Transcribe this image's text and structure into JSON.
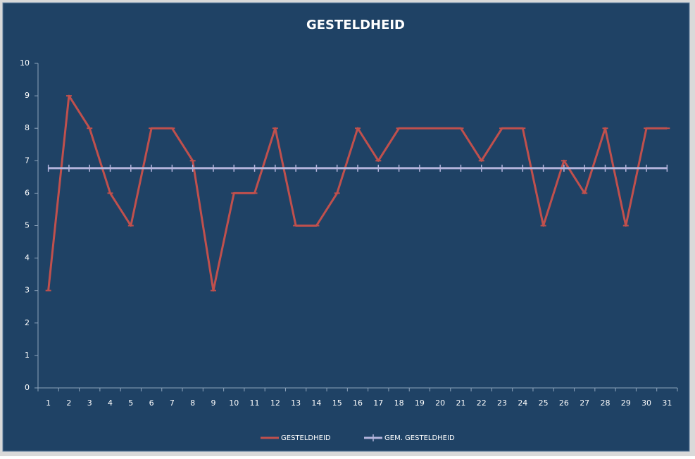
{
  "chart_data": {
    "type": "line",
    "title": "GESTELDHEID",
    "categories": [
      "1",
      "2",
      "3",
      "4",
      "5",
      "6",
      "7",
      "8",
      "9",
      "10",
      "11",
      "12",
      "13",
      "14",
      "15",
      "16",
      "17",
      "18",
      "19",
      "20",
      "21",
      "22",
      "23",
      "24",
      "25",
      "26",
      "27",
      "28",
      "29",
      "30",
      "31"
    ],
    "series": [
      {
        "name": "GESTELDHEID",
        "color": "#c0504d",
        "marker": "dash",
        "values": [
          3,
          9,
          8,
          6,
          5,
          8,
          8,
          7,
          3,
          6,
          6,
          8,
          5,
          5,
          6,
          8,
          7,
          8,
          8,
          8,
          8,
          7,
          8,
          8,
          5,
          7,
          6,
          8,
          5,
          8,
          8
        ]
      },
      {
        "name": "GEM. GESTELDHEID",
        "color": "#b4b4dc",
        "marker": "plus",
        "values": [
          6.77,
          6.77,
          6.77,
          6.77,
          6.77,
          6.77,
          6.77,
          6.77,
          6.77,
          6.77,
          6.77,
          6.77,
          6.77,
          6.77,
          6.77,
          6.77,
          6.77,
          6.77,
          6.77,
          6.77,
          6.77,
          6.77,
          6.77,
          6.77,
          6.77,
          6.77,
          6.77,
          6.77,
          6.77,
          6.77,
          6.77
        ]
      }
    ],
    "ylim": [
      0,
      10
    ],
    "yticks": [
      0,
      1,
      2,
      3,
      4,
      5,
      6,
      7,
      8,
      9,
      10
    ],
    "grid": false,
    "legend": "bottom"
  }
}
